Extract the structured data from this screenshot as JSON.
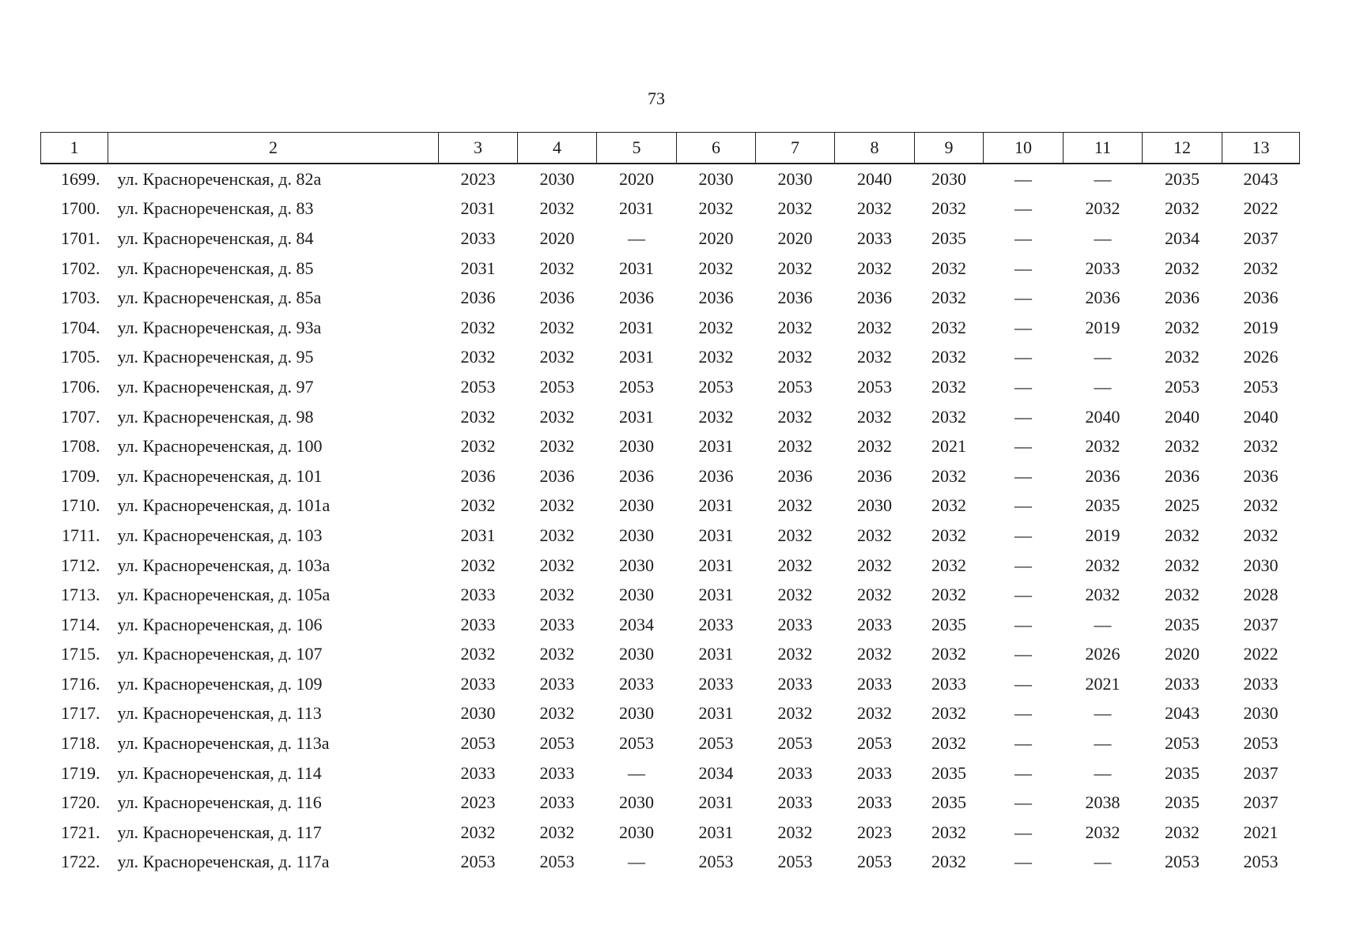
{
  "header": {
    "page_number": "73"
  },
  "table": {
    "columns": [
      "1",
      "2",
      "3",
      "4",
      "5",
      "6",
      "7",
      "8",
      "9",
      "10",
      "11",
      "12",
      "13"
    ],
    "rows": [
      [
        "1699.",
        "ул. Краснореченская, д. 82а",
        "2023",
        "2030",
        "2020",
        "2030",
        "2030",
        "2040",
        "2030",
        "—",
        "—",
        "2035",
        "2043"
      ],
      [
        "1700.",
        "ул. Краснореченская, д. 83",
        "2031",
        "2032",
        "2031",
        "2032",
        "2032",
        "2032",
        "2032",
        "—",
        "2032",
        "2032",
        "2022"
      ],
      [
        "1701.",
        "ул. Краснореченская, д. 84",
        "2033",
        "2020",
        "—",
        "2020",
        "2020",
        "2033",
        "2035",
        "—",
        "—",
        "2034",
        "2037"
      ],
      [
        "1702.",
        "ул. Краснореченская, д. 85",
        "2031",
        "2032",
        "2031",
        "2032",
        "2032",
        "2032",
        "2032",
        "—",
        "2033",
        "2032",
        "2032"
      ],
      [
        "1703.",
        "ул. Краснореченская, д. 85а",
        "2036",
        "2036",
        "2036",
        "2036",
        "2036",
        "2036",
        "2032",
        "—",
        "2036",
        "2036",
        "2036"
      ],
      [
        "1704.",
        "ул. Краснореченская, д. 93а",
        "2032",
        "2032",
        "2031",
        "2032",
        "2032",
        "2032",
        "2032",
        "—",
        "2019",
        "2032",
        "2019"
      ],
      [
        "1705.",
        "ул. Краснореченская, д. 95",
        "2032",
        "2032",
        "2031",
        "2032",
        "2032",
        "2032",
        "2032",
        "—",
        "—",
        "2032",
        "2026"
      ],
      [
        "1706.",
        "ул. Краснореченская, д. 97",
        "2053",
        "2053",
        "2053",
        "2053",
        "2053",
        "2053",
        "2032",
        "—",
        "—",
        "2053",
        "2053"
      ],
      [
        "1707.",
        "ул. Краснореченская, д. 98",
        "2032",
        "2032",
        "2031",
        "2032",
        "2032",
        "2032",
        "2032",
        "—",
        "2040",
        "2040",
        "2040"
      ],
      [
        "1708.",
        "ул. Краснореченская, д. 100",
        "2032",
        "2032",
        "2030",
        "2031",
        "2032",
        "2032",
        "2021",
        "—",
        "2032",
        "2032",
        "2032"
      ],
      [
        "1709.",
        "ул. Краснореченская, д. 101",
        "2036",
        "2036",
        "2036",
        "2036",
        "2036",
        "2036",
        "2032",
        "—",
        "2036",
        "2036",
        "2036"
      ],
      [
        "1710.",
        "ул. Краснореченская, д. 101а",
        "2032",
        "2032",
        "2030",
        "2031",
        "2032",
        "2030",
        "2032",
        "—",
        "2035",
        "2025",
        "2032"
      ],
      [
        "1711.",
        "ул. Краснореченская, д. 103",
        "2031",
        "2032",
        "2030",
        "2031",
        "2032",
        "2032",
        "2032",
        "—",
        "2019",
        "2032",
        "2032"
      ],
      [
        "1712.",
        "ул. Краснореченская, д. 103а",
        "2032",
        "2032",
        "2030",
        "2031",
        "2032",
        "2032",
        "2032",
        "—",
        "2032",
        "2032",
        "2030"
      ],
      [
        "1713.",
        "ул. Краснореченская, д. 105а",
        "2033",
        "2032",
        "2030",
        "2031",
        "2032",
        "2032",
        "2032",
        "—",
        "2032",
        "2032",
        "2028"
      ],
      [
        "1714.",
        "ул. Краснореченская, д. 106",
        "2033",
        "2033",
        "2034",
        "2033",
        "2033",
        "2033",
        "2035",
        "—",
        "—",
        "2035",
        "2037"
      ],
      [
        "1715.",
        "ул. Краснореченская, д. 107",
        "2032",
        "2032",
        "2030",
        "2031",
        "2032",
        "2032",
        "2032",
        "—",
        "2026",
        "2020",
        "2022"
      ],
      [
        "1716.",
        "ул. Краснореченская, д. 109",
        "2033",
        "2033",
        "2033",
        "2033",
        "2033",
        "2033",
        "2033",
        "—",
        "2021",
        "2033",
        "2033"
      ],
      [
        "1717.",
        "ул. Краснореченская, д. 113",
        "2030",
        "2032",
        "2030",
        "2031",
        "2032",
        "2032",
        "2032",
        "—",
        "—",
        "2043",
        "2030"
      ],
      [
        "1718.",
        "ул. Краснореченская, д. 113а",
        "2053",
        "2053",
        "2053",
        "2053",
        "2053",
        "2053",
        "2032",
        "—",
        "—",
        "2053",
        "2053"
      ],
      [
        "1719.",
        "ул. Краснореченская, д. 114",
        "2033",
        "2033",
        "—",
        "2034",
        "2033",
        "2033",
        "2035",
        "—",
        "—",
        "2035",
        "2037"
      ],
      [
        "1720.",
        "ул. Краснореченская, д. 116",
        "2023",
        "2033",
        "2030",
        "2031",
        "2033",
        "2033",
        "2035",
        "—",
        "2038",
        "2035",
        "2037"
      ],
      [
        "1721.",
        "ул. Краснореченская, д. 117",
        "2032",
        "2032",
        "2030",
        "2031",
        "2032",
        "2023",
        "2032",
        "—",
        "2032",
        "2032",
        "2021"
      ],
      [
        "1722.",
        "ул. Краснореченская, д. 117а",
        "2053",
        "2053",
        "—",
        "2053",
        "2053",
        "2053",
        "2032",
        "—",
        "—",
        "2053",
        "2053"
      ]
    ]
  }
}
